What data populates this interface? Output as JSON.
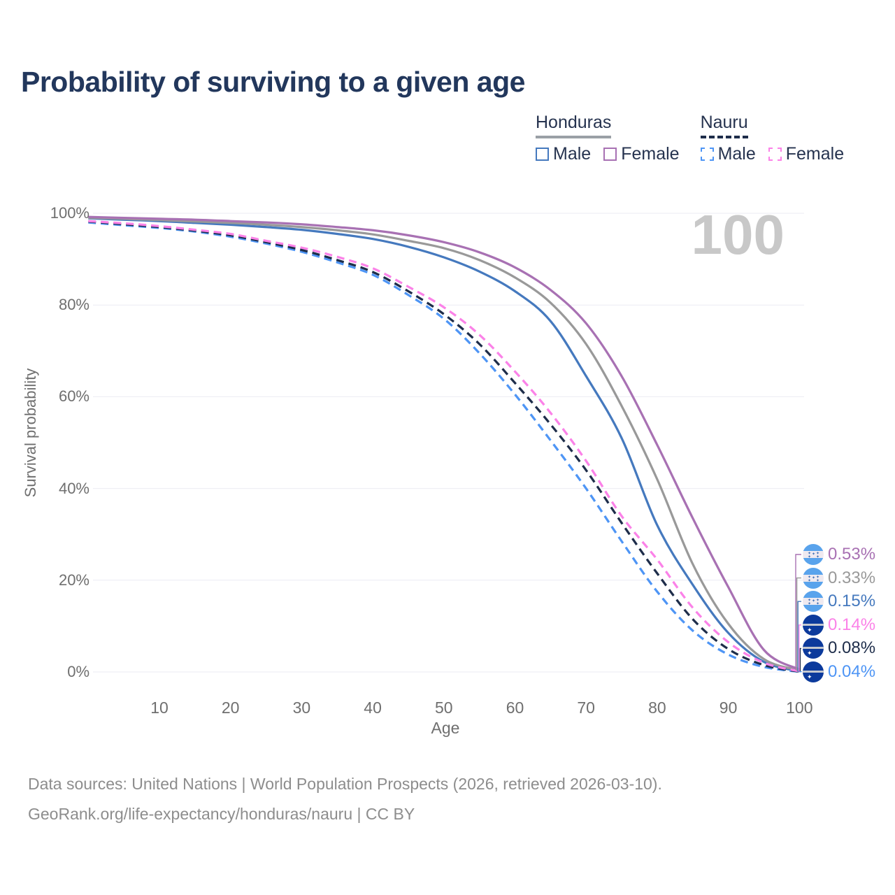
{
  "title": "Probability of surviving to a given age",
  "legend": {
    "groups": [
      {
        "label": "Honduras",
        "line_style": "solid",
        "underline_color": "#9aa0a6",
        "items": [
          {
            "label": "Male",
            "color": "#4579BE",
            "dashed": false
          },
          {
            "label": "Female",
            "color": "#A871B3",
            "dashed": false
          }
        ]
      },
      {
        "label": "Nauru",
        "line_style": "dashed",
        "underline_color": "#1e2d4a",
        "items": [
          {
            "label": "Male",
            "color": "#4E95F5",
            "dashed": true
          },
          {
            "label": "Female",
            "color": "#FB82E8",
            "dashed": true
          }
        ]
      }
    ]
  },
  "chart_data": {
    "type": "line",
    "title": "Probability of surviving to a given age",
    "xlabel": "Age",
    "ylabel": "Survival probability",
    "xlim": [
      0,
      100
    ],
    "ylim": [
      0,
      100
    ],
    "x_ticks": [
      10,
      20,
      30,
      40,
      50,
      60,
      70,
      80,
      90,
      100
    ],
    "y_ticks_percent": [
      0,
      20,
      40,
      60,
      80,
      100
    ],
    "grid": "horizontal",
    "legend_position": "top-right",
    "watermark": "100",
    "ages": [
      0,
      5,
      10,
      15,
      20,
      25,
      30,
      35,
      40,
      45,
      50,
      55,
      60,
      65,
      70,
      75,
      80,
      85,
      90,
      95,
      100
    ],
    "series": [
      {
        "id": "honduras-male",
        "name": "Honduras Male",
        "country": "Honduras",
        "sex": "Male",
        "color": "#4579BE",
        "line_style": "solid",
        "flag": "honduras",
        "end_label": "0.15%",
        "values": [
          98.9,
          98.6,
          98.3,
          97.9,
          97.5,
          97.0,
          96.4,
          95.5,
          94.4,
          92.7,
          90.4,
          87.3,
          83.0,
          76.5,
          64.5,
          51.0,
          32.0,
          19.0,
          8.5,
          2.2,
          0.15
        ]
      },
      {
        "id": "honduras-both",
        "name": "Honduras Both sexes",
        "country": "Honduras",
        "sex": "Both",
        "color": "#999999",
        "line_style": "solid",
        "flag": "honduras",
        "end_label": "0.33%",
        "values": [
          99.0,
          98.8,
          98.5,
          98.2,
          97.9,
          97.5,
          97.0,
          96.3,
          95.4,
          94.0,
          92.4,
          89.8,
          86.0,
          80.5,
          71.5,
          58.0,
          42.0,
          23.5,
          10.5,
          2.8,
          0.33
        ]
      },
      {
        "id": "honduras-female",
        "name": "Honduras Female",
        "country": "Honduras",
        "sex": "Female",
        "color": "#A871B3",
        "line_style": "solid",
        "flag": "honduras",
        "end_label": "0.53%",
        "values": [
          99.2,
          99.0,
          98.8,
          98.6,
          98.3,
          98.0,
          97.6,
          97.0,
          96.3,
          95.2,
          93.7,
          91.5,
          88.2,
          83.3,
          76.0,
          64.5,
          49.5,
          33.5,
          18.5,
          4.8,
          0.53
        ]
      },
      {
        "id": "nauru-male",
        "name": "Nauru Male",
        "country": "Nauru",
        "sex": "Male",
        "color": "#4E95F5",
        "line_style": "dashed",
        "flag": "nauru",
        "end_label": "0.04%",
        "values": [
          98.0,
          97.4,
          96.8,
          96.0,
          94.9,
          93.4,
          91.6,
          89.3,
          86.6,
          82.2,
          77.0,
          69.5,
          60.5,
          50.5,
          40.0,
          28.5,
          17.5,
          9.0,
          3.8,
          1.1,
          0.04
        ]
      },
      {
        "id": "nauru-both",
        "name": "Nauru Both sexes",
        "country": "Nauru",
        "sex": "Both",
        "color": "#1E2D4A",
        "line_style": "dashed",
        "flag": "nauru",
        "end_label": "0.08%",
        "values": [
          98.2,
          97.6,
          97.0,
          96.2,
          95.2,
          93.7,
          92.0,
          89.8,
          87.2,
          83.0,
          78.0,
          71.5,
          63.0,
          54.0,
          44.0,
          32.5,
          21.5,
          11.5,
          5.0,
          1.5,
          0.08
        ]
      },
      {
        "id": "nauru-female",
        "name": "Nauru Female",
        "country": "Nauru",
        "sex": "Female",
        "color": "#FB82E8",
        "line_style": "dashed",
        "flag": "nauru",
        "end_label": "0.14%",
        "values": [
          98.3,
          97.8,
          97.2,
          96.4,
          95.5,
          94.0,
          92.5,
          90.5,
          88.0,
          84.0,
          79.5,
          73.5,
          65.5,
          56.5,
          46.0,
          34.0,
          24.5,
          14.0,
          6.5,
          2.0,
          0.14
        ]
      }
    ],
    "end_label_order": [
      "honduras-female",
      "honduras-both",
      "honduras-male",
      "nauru-female",
      "nauru-both",
      "nauru-male"
    ]
  },
  "flags": {
    "honduras": {
      "band_color": "#59A3EC",
      "middle_color": "#efeaf0",
      "star_color": "#3f6fb5"
    },
    "nauru": {
      "background_color": "#0C3A9C",
      "stripe_color": "#c3c7cf",
      "star_color": "#ffffff"
    }
  },
  "style": {
    "grid_color": "#ebebf3",
    "tick_color": "#6f6f6f",
    "title_color": "#22375c",
    "watermark_color": "#c8c8c8",
    "footer_color": "#8d8d8d"
  },
  "footer": {
    "line1": "Data sources: United Nations | World Population Prospects (2026, retrieved 2026-03-10).",
    "line2": "GeoRank.org/life-expectancy/honduras/nauru | CC BY"
  }
}
